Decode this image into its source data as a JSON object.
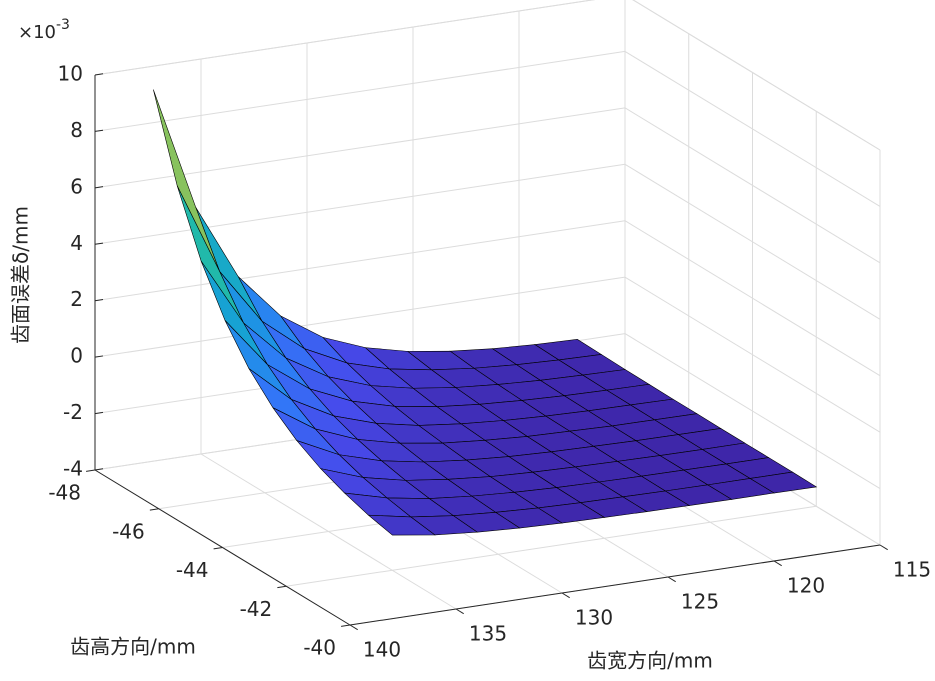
{
  "chart_data": {
    "type": "surface",
    "xlabel": "齿宽方向/mm",
    "ylabel": "齿高方向/mm",
    "zlabel": "齿面误差δ/mm",
    "zmultiplier": {
      "base": "×10",
      "exponent": "-3"
    },
    "colormap": "parula",
    "edge_color": "#000000",
    "grid": true,
    "xlim": [
      115,
      140
    ],
    "xticks": [
      115,
      120,
      125,
      130,
      135,
      140
    ],
    "ylim": [
      -48,
      -40
    ],
    "yticks": [
      -48,
      -46,
      -44,
      -42,
      -40
    ],
    "zlim": [
      -4,
      10
    ],
    "zticks": [
      -4,
      -2,
      0,
      2,
      4,
      6,
      8,
      10
    ],
    "x": [
      138,
      136,
      134,
      132,
      130,
      128,
      126,
      124,
      122,
      120,
      118
    ],
    "y": [
      -47.5,
      -46.75,
      -46,
      -45.25,
      -44.5,
      -43.75,
      -43,
      -42.25,
      -41.5,
      -40.75,
      -40
    ],
    "z": [
      [
        9.6,
        5.2,
        2.52,
        0.9,
        -0.09,
        -0.68,
        -1.04,
        -1.26,
        -1.4,
        -1.48,
        -1.52
      ],
      [
        6.7,
        3.44,
        1.45,
        0.25,
        -0.48,
        -0.92,
        -1.18,
        -1.35,
        -1.45,
        -1.51,
        -1.54
      ],
      [
        4.55,
        2.13,
        0.66,
        -0.23,
        -0.77,
        -1.09,
        -1.29,
        -1.41,
        -1.49,
        -1.53,
        -1.56
      ],
      [
        2.96,
        1.17,
        0.08,
        -0.58,
        -0.99,
        -1.23,
        -1.37,
        -1.46,
        -1.52,
        -1.55,
        -1.57
      ],
      [
        1.77,
        0.45,
        -0.36,
        -0.85,
        -1.15,
        -1.32,
        -1.43,
        -1.5,
        -1.54,
        -1.56,
        -1.58
      ],
      [
        0.9,
        -0.08,
        -0.68,
        -1.04,
        -1.26,
        -1.39,
        -1.48,
        -1.52,
        -1.56,
        -1.57,
        -1.58
      ],
      [
        0.25,
        -0.48,
        -0.92,
        -1.19,
        -1.35,
        -1.45,
        -1.51,
        -1.54,
        -1.57,
        -1.58,
        -1.59
      ],
      [
        -0.23,
        -0.77,
        -1.1,
        -1.29,
        -1.42,
        -1.49,
        -1.53,
        -1.56,
        -1.58,
        -1.59,
        -1.59
      ],
      [
        -0.58,
        -0.98,
        -1.23,
        -1.37,
        -1.46,
        -1.52,
        -1.55,
        -1.57,
        -1.58,
        -1.59,
        -1.59
      ],
      [
        -0.85,
        -1.14,
        -1.32,
        -1.43,
        -1.5,
        -1.54,
        -1.56,
        -1.58,
        -1.59,
        -1.59,
        -1.59
      ],
      [
        -1.04,
        -1.26,
        -1.39,
        -1.47,
        -1.52,
        -1.55,
        -1.57,
        -1.58,
        -1.59,
        -1.59,
        -1.6
      ]
    ]
  }
}
